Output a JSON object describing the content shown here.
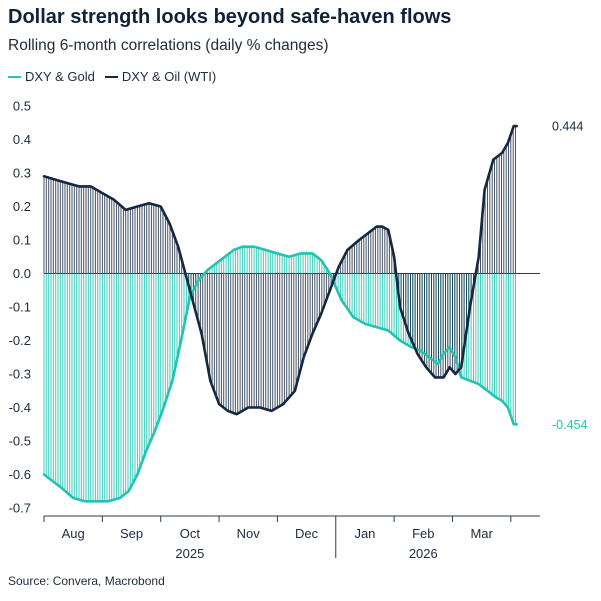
{
  "chart_data": {
    "type": "line",
    "title": "Dollar strength looks beyond safe-haven flows",
    "subtitle": "Rolling 6-month correlations (daily % changes)",
    "source": "Source: Convera, Macrobond",
    "ylim": [
      -0.7,
      0.5
    ],
    "yticks": [
      -0.7,
      -0.6,
      -0.5,
      -0.4,
      -0.3,
      -0.2,
      -0.1,
      0.0,
      0.1,
      0.2,
      0.3,
      0.4,
      0.5
    ],
    "ytick_labels": [
      "-0.7",
      "-0.6",
      "-0.5",
      "-0.4",
      "-0.3",
      "-0.2",
      "-0.1",
      "0.0",
      "0.1",
      "0.2",
      "0.3",
      "0.4",
      "0.5"
    ],
    "xlim": [
      0,
      8.5
    ],
    "month_ticks": [
      {
        "label": "Aug",
        "at": 0.5
      },
      {
        "label": "Sep",
        "at": 1.5
      },
      {
        "label": "Oct",
        "at": 2.5
      },
      {
        "label": "Nov",
        "at": 3.5
      },
      {
        "label": "Dec",
        "at": 4.5
      },
      {
        "label": "Jan",
        "at": 5.5
      },
      {
        "label": "Feb",
        "at": 6.5
      },
      {
        "label": "Mar",
        "at": 7.5
      }
    ],
    "year_labels": [
      {
        "label": "2025",
        "at": 2.5
      },
      {
        "label": "2026",
        "at": 6.5
      }
    ],
    "year_separator_at": 5.0,
    "grid": false,
    "legend_position": "top-left",
    "end_labels": {
      "gold": "-0.454",
      "oil": "0.444"
    },
    "series": [
      {
        "name": "DXY & Gold",
        "key": "gold",
        "color": "#20c4b0",
        "x": [
          0,
          0.15,
          0.3,
          0.5,
          0.7,
          0.9,
          1.1,
          1.3,
          1.45,
          1.6,
          1.75,
          1.9,
          2.05,
          2.2,
          2.35,
          2.5,
          2.65,
          2.8,
          2.95,
          3.1,
          3.25,
          3.4,
          3.6,
          3.8,
          4.0,
          4.2,
          4.4,
          4.6,
          4.75,
          4.9,
          5.1,
          5.3,
          5.5,
          5.7,
          5.9,
          6.1,
          6.3,
          6.45,
          6.6,
          6.75,
          6.85,
          6.95,
          7.05,
          7.15,
          7.3,
          7.45,
          7.6,
          7.75,
          7.85,
          7.95,
          8.05,
          8.1
        ],
        "y": [
          -0.6,
          -0.62,
          -0.64,
          -0.67,
          -0.68,
          -0.68,
          -0.68,
          -0.67,
          -0.65,
          -0.6,
          -0.53,
          -0.47,
          -0.4,
          -0.32,
          -0.2,
          -0.07,
          -0.02,
          0.01,
          0.03,
          0.05,
          0.07,
          0.08,
          0.08,
          0.07,
          0.06,
          0.05,
          0.06,
          0.06,
          0.04,
          0.0,
          -0.08,
          -0.13,
          -0.15,
          -0.16,
          -0.17,
          -0.2,
          -0.22,
          -0.23,
          -0.25,
          -0.27,
          -0.24,
          -0.22,
          -0.25,
          -0.31,
          -0.32,
          -0.33,
          -0.35,
          -0.37,
          -0.38,
          -0.4,
          -0.45,
          -0.45
        ]
      },
      {
        "name": "DXY & Oil (WTI)",
        "key": "oil",
        "color": "#15283f",
        "x": [
          0,
          0.2,
          0.4,
          0.6,
          0.8,
          1.0,
          1.2,
          1.4,
          1.6,
          1.8,
          2.0,
          2.15,
          2.3,
          2.5,
          2.7,
          2.85,
          3.0,
          3.15,
          3.3,
          3.5,
          3.7,
          3.9,
          4.1,
          4.3,
          4.45,
          4.6,
          4.75,
          4.9,
          5.05,
          5.2,
          5.4,
          5.55,
          5.7,
          5.8,
          5.9,
          6.0,
          6.1,
          6.25,
          6.4,
          6.55,
          6.7,
          6.85,
          6.95,
          7.05,
          7.15,
          7.3,
          7.45,
          7.55,
          7.7,
          7.85,
          7.95,
          8.05,
          8.1
        ],
        "y": [
          0.29,
          0.28,
          0.27,
          0.26,
          0.26,
          0.24,
          0.22,
          0.19,
          0.2,
          0.21,
          0.2,
          0.15,
          0.08,
          -0.05,
          -0.18,
          -0.32,
          -0.39,
          -0.41,
          -0.42,
          -0.4,
          -0.4,
          -0.41,
          -0.39,
          -0.35,
          -0.25,
          -0.18,
          -0.12,
          -0.05,
          0.02,
          0.07,
          0.1,
          0.12,
          0.14,
          0.14,
          0.13,
          0.05,
          -0.1,
          -0.18,
          -0.24,
          -0.28,
          -0.31,
          -0.31,
          -0.28,
          -0.3,
          -0.28,
          -0.1,
          0.05,
          0.25,
          0.34,
          0.36,
          0.39,
          0.44,
          0.44
        ]
      }
    ]
  }
}
